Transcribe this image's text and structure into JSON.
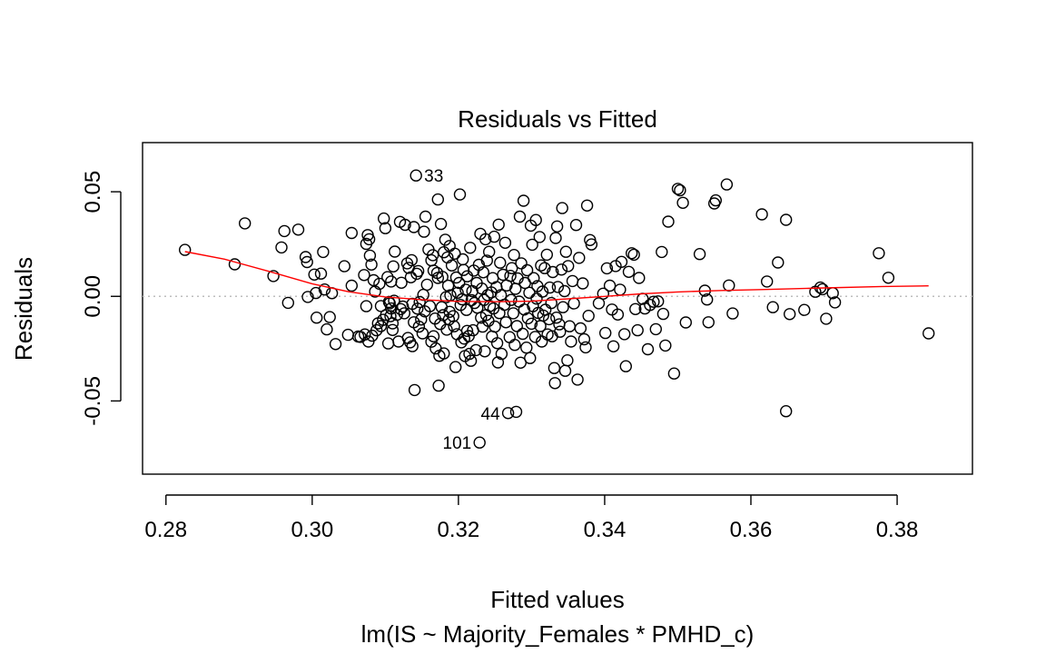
{
  "chart_data": {
    "type": "scatter",
    "title": "Residuals vs Fitted",
    "xlabel": "Fitted values",
    "subtitle": "lm(IS ~ Majority_Females * PMHD_c)",
    "ylabel": "Residuals",
    "xlim": [
      0.2768,
      0.3903
    ],
    "ylim": [
      -0.085,
      0.0735
    ],
    "x_ticks": [
      0.28,
      0.3,
      0.32,
      0.34,
      0.36,
      0.38
    ],
    "x_tick_labels": [
      "0.28",
      "0.30",
      "0.32",
      "0.34",
      "0.36",
      "0.38"
    ],
    "y_ticks": [
      -0.05,
      0.0,
      0.05
    ],
    "y_tick_labels": [
      "-0.05",
      "0.00",
      "0.05"
    ],
    "reference_line": 0,
    "colors": {
      "points": "#000000",
      "smoother": "#ff0000",
      "reference": "#bebebe"
    },
    "points": [
      [
        0.2826,
        0.0222
      ],
      [
        0.2894,
        0.0153
      ],
      [
        0.2908,
        0.0349
      ],
      [
        0.2947,
        0.0097
      ],
      [
        0.2958,
        0.0234
      ],
      [
        0.2962,
        0.0312
      ],
      [
        0.2967,
        -0.0031
      ],
      [
        0.2981,
        0.0319
      ],
      [
        0.2991,
        0.0188
      ],
      [
        0.2993,
        0.0164
      ],
      [
        0.2994,
        -0.0003
      ],
      [
        0.3003,
        0.0104
      ],
      [
        0.3005,
        0.0016
      ],
      [
        0.3006,
        -0.0102
      ],
      [
        0.3012,
        0.0109
      ],
      [
        0.3015,
        0.0212
      ],
      [
        0.3017,
        0.0033
      ],
      [
        0.302,
        -0.0158
      ],
      [
        0.3024,
        -0.0099
      ],
      [
        0.3027,
        0.0015
      ],
      [
        0.3032,
        -0.0228
      ],
      [
        0.3044,
        0.0144
      ],
      [
        0.3049,
        -0.0184
      ],
      [
        0.3054,
        0.0303
      ],
      [
        0.3054,
        0.0051
      ],
      [
        0.3063,
        -0.0192
      ],
      [
        0.3066,
        -0.0194
      ],
      [
        0.3071,
        0.0102
      ],
      [
        0.3072,
        -0.0182
      ],
      [
        0.3074,
        0.0251
      ],
      [
        0.3074,
        -0.0047
      ],
      [
        0.3076,
        0.0293
      ],
      [
        0.3077,
        -0.0216
      ],
      [
        0.3078,
        0.0273
      ],
      [
        0.3079,
        0.0195
      ],
      [
        0.3081,
        0.0152
      ],
      [
        0.3082,
        -0.0188
      ],
      [
        0.3084,
        0.0077
      ],
      [
        0.3086,
        0.0023
      ],
      [
        0.3088,
        -0.0162
      ],
      [
        0.309,
        -0.0129
      ],
      [
        0.3092,
        0.006
      ],
      [
        0.3094,
        -0.0046
      ],
      [
        0.3094,
        -0.0142
      ],
      [
        0.3097,
        -0.0112
      ],
      [
        0.3098,
        0.0372
      ],
      [
        0.31,
        0.0326
      ],
      [
        0.3101,
        -0.0089
      ],
      [
        0.3103,
        0.0092
      ],
      [
        0.3104,
        -0.0225
      ],
      [
        0.3105,
        -0.0027
      ],
      [
        0.3106,
        -0.0033
      ],
      [
        0.3107,
        -0.0095
      ],
      [
        0.3108,
        0.0071
      ],
      [
        0.3108,
        -0.0058
      ],
      [
        0.311,
        -0.0161
      ],
      [
        0.311,
        -0.0129
      ],
      [
        0.3111,
        0.0143
      ],
      [
        0.3112,
        -0.0021
      ],
      [
        0.3113,
        0.0214
      ],
      [
        0.3116,
        -0.0088
      ],
      [
        0.3118,
        -0.0216
      ],
      [
        0.312,
        0.0356
      ],
      [
        0.3121,
        -0.0061
      ],
      [
        0.3122,
        0.0065
      ],
      [
        0.3124,
        -0.0049
      ],
      [
        0.3126,
        -0.0081
      ],
      [
        0.3127,
        0.0342
      ],
      [
        0.313,
        0.0158
      ],
      [
        0.3131,
        -0.0199
      ],
      [
        0.3132,
        0.0136
      ],
      [
        0.3134,
        -0.022
      ],
      [
        0.3135,
        0.0091
      ],
      [
        0.3136,
        0.0173
      ],
      [
        0.3137,
        -0.0238
      ],
      [
        0.3137,
        -0.0036
      ],
      [
        0.3139,
        0.0331
      ],
      [
        0.3139,
        -0.0124
      ],
      [
        0.314,
        -0.0448
      ],
      [
        0.3142,
        0.0578
      ],
      [
        0.3143,
        0.0108
      ],
      [
        0.3144,
        -0.0059
      ],
      [
        0.3145,
        0.0121
      ],
      [
        0.3146,
        -0.0145
      ],
      [
        0.3147,
        -0.0027
      ],
      [
        0.3149,
        -0.0111
      ],
      [
        0.3151,
        -0.0177
      ],
      [
        0.3152,
        0.0007
      ],
      [
        0.3153,
        0.0309
      ],
      [
        0.3154,
        -0.0072
      ],
      [
        0.3155,
        0.0381
      ],
      [
        0.3157,
        0.0056
      ],
      [
        0.3159,
        0.0224
      ],
      [
        0.3161,
        -0.0047
      ],
      [
        0.3163,
        -0.0217
      ],
      [
        0.3163,
        0.0172
      ],
      [
        0.3165,
        0.0197
      ],
      [
        0.3166,
        -0.0191
      ],
      [
        0.3166,
        0.0123
      ],
      [
        0.3168,
        -0.0106
      ],
      [
        0.3169,
        -0.0249
      ],
      [
        0.3171,
        0.0112
      ],
      [
        0.3172,
        0.0463
      ],
      [
        0.3172,
        0.0088
      ],
      [
        0.3173,
        -0.0427
      ],
      [
        0.3174,
        -0.0284
      ],
      [
        0.3175,
        -0.0132
      ],
      [
        0.3176,
        0.0346
      ],
      [
        0.3177,
        -0.0052
      ],
      [
        0.3178,
        0.0093
      ],
      [
        0.3179,
        -0.009
      ],
      [
        0.318,
        0.0211
      ],
      [
        0.318,
        -0.0273
      ],
      [
        0.3182,
        0.0271
      ],
      [
        0.3183,
        -0.0004
      ],
      [
        0.3184,
        -0.0159
      ],
      [
        0.3185,
        0.0186
      ],
      [
        0.3186,
        0.0051
      ],
      [
        0.3187,
        -0.0111
      ],
      [
        0.3188,
        0.0241
      ],
      [
        0.3188,
        -0.0074
      ],
      [
        0.3189,
        0.0005
      ],
      [
        0.3191,
        0.0148
      ],
      [
        0.3193,
        -0.0095
      ],
      [
        0.3194,
        -0.0143
      ],
      [
        0.3195,
        0.0204
      ],
      [
        0.3196,
        -0.0338
      ],
      [
        0.3197,
        0.009
      ],
      [
        0.3198,
        -0.0181
      ],
      [
        0.3199,
        0.0017
      ],
      [
        0.3201,
        0.0064
      ],
      [
        0.3202,
        0.0487
      ],
      [
        0.3203,
        -0.0041
      ],
      [
        0.3204,
        -0.022
      ],
      [
        0.3205,
        -0.0014
      ],
      [
        0.3206,
        0.0177
      ],
      [
        0.3207,
        0.0126
      ],
      [
        0.3208,
        -0.0202
      ],
      [
        0.3209,
        -0.0285
      ],
      [
        0.321,
        0.0032
      ],
      [
        0.3211,
        -0.0065
      ],
      [
        0.3212,
        -0.0165
      ],
      [
        0.3212,
        0.0096
      ],
      [
        0.3214,
        -0.019
      ],
      [
        0.3215,
        -0.0275
      ],
      [
        0.3216,
        0.0232
      ],
      [
        0.3217,
        -0.0308
      ],
      [
        0.3218,
        -0.0018
      ],
      [
        0.3219,
        0.0025
      ],
      [
        0.322,
        -0.0162
      ],
      [
        0.3221,
        0.0123
      ],
      [
        0.3222,
        -0.0032
      ],
      [
        0.3224,
        -0.0257
      ],
      [
        0.3225,
        0.0064
      ],
      [
        0.3226,
        -0.0054
      ],
      [
        0.3228,
        0.0151
      ],
      [
        0.3229,
        -0.0699
      ],
      [
        0.323,
        0.0299
      ],
      [
        0.3231,
        -0.0102
      ],
      [
        0.3232,
        0.0037
      ],
      [
        0.3233,
        -0.0145
      ],
      [
        0.3234,
        0.0115
      ],
      [
        0.3235,
        -0.0017
      ],
      [
        0.3236,
        -0.0263
      ],
      [
        0.3237,
        0.0273
      ],
      [
        0.3238,
        -0.0089
      ],
      [
        0.3239,
        0.0171
      ],
      [
        0.324,
        0.0006
      ],
      [
        0.3241,
        -0.0117
      ],
      [
        0.3242,
        0.0213
      ],
      [
        0.3243,
        -0.0046
      ],
      [
        0.3245,
        0.0019
      ],
      [
        0.3246,
        -0.0192
      ],
      [
        0.3247,
        0.0087
      ],
      [
        0.3248,
        -0.0058
      ],
      [
        0.3249,
        0.0285
      ],
      [
        0.325,
        -0.0145
      ],
      [
        0.3252,
        0.0044
      ],
      [
        0.3253,
        -0.0224
      ],
      [
        0.3254,
        -0.0316
      ],
      [
        0.3255,
        0.0343
      ],
      [
        0.3256,
        -0.008
      ],
      [
        0.3257,
        0.0161
      ],
      [
        0.3258,
        0.0006
      ],
      [
        0.3259,
        -0.0275
      ],
      [
        0.3261,
        0.0103
      ],
      [
        0.3263,
        -0.004
      ],
      [
        0.3264,
        0.0256
      ],
      [
        0.3265,
        -0.0124
      ],
      [
        0.3266,
        0.0052
      ],
      [
        0.3268,
        -0.0558
      ],
      [
        0.327,
        -0.0195
      ],
      [
        0.3271,
        0.0098
      ],
      [
        0.3272,
        -0.0017
      ],
      [
        0.3273,
        0.0135
      ],
      [
        0.3275,
        -0.0081
      ],
      [
        0.3276,
        0.0198
      ],
      [
        0.3277,
        -0.0232
      ],
      [
        0.3278,
        0.0036
      ],
      [
        0.3279,
        -0.0552
      ],
      [
        0.328,
        -0.0142
      ],
      [
        0.3281,
        0.0086
      ],
      [
        0.3283,
        -0.0025
      ],
      [
        0.3284,
        0.0381
      ],
      [
        0.3285,
        -0.0317
      ],
      [
        0.3286,
        0.0158
      ],
      [
        0.3288,
        -0.0179
      ],
      [
        0.3289,
        0.0457
      ],
      [
        0.329,
        -0.0063
      ],
      [
        0.3291,
        0.0064
      ],
      [
        0.3293,
        -0.0245
      ],
      [
        0.3294,
        0.0125
      ],
      [
        0.3295,
        -0.0105
      ],
      [
        0.3297,
        0.0017
      ],
      [
        0.3298,
        -0.0295
      ],
      [
        0.3299,
        0.0338
      ],
      [
        0.33,
        -0.0131
      ],
      [
        0.3301,
        0.0247
      ],
      [
        0.3302,
        -0.0047
      ],
      [
        0.3303,
        0.0087
      ],
      [
        0.3305,
        -0.0194
      ],
      [
        0.3306,
        0.0365
      ],
      [
        0.3307,
        -0.0011
      ],
      [
        0.3308,
        0.0049
      ],
      [
        0.3309,
        -0.0079
      ],
      [
        0.3311,
        0.0284
      ],
      [
        0.3312,
        -0.0142
      ],
      [
        0.3313,
        0.0148
      ],
      [
        0.3314,
        -0.0216
      ],
      [
        0.3315,
        0.0023
      ],
      [
        0.3316,
        -0.0092
      ],
      [
        0.3318,
        0.0135
      ],
      [
        0.3319,
        -0.0064
      ],
      [
        0.3321,
        0.0199
      ],
      [
        0.3322,
        -0.0182
      ],
      [
        0.3324,
        -0.0109
      ],
      [
        0.3325,
        0.0042
      ],
      [
        0.3327,
        -0.0032
      ],
      [
        0.3328,
        -0.0191
      ],
      [
        0.3329,
        0.0116
      ],
      [
        0.3331,
        -0.0343
      ],
      [
        0.3332,
        -0.0415
      ],
      [
        0.3333,
        0.0279
      ],
      [
        0.3334,
        -0.0102
      ],
      [
        0.3335,
        0.0334
      ],
      [
        0.3336,
        0.0045
      ],
      [
        0.3338,
        -0.0134
      ],
      [
        0.3339,
        -0.0169
      ],
      [
        0.3341,
        0.0128
      ],
      [
        0.3342,
        0.0422
      ],
      [
        0.3343,
        -0.0052
      ],
      [
        0.3345,
        0.0025
      ],
      [
        0.3346,
        -0.0356
      ],
      [
        0.3347,
        0.0213
      ],
      [
        0.3349,
        -0.0306
      ],
      [
        0.335,
        0.0145
      ],
      [
        0.3352,
        -0.0143
      ],
      [
        0.3354,
        -0.0216
      ],
      [
        0.3356,
        0.0073
      ],
      [
        0.3358,
        -0.0034
      ],
      [
        0.3361,
        0.0341
      ],
      [
        0.3363,
        -0.0398
      ],
      [
        0.3365,
        0.0184
      ],
      [
        0.3367,
        -0.0153
      ],
      [
        0.337,
        0.0062
      ],
      [
        0.3372,
        -0.0205
      ],
      [
        0.3374,
        -0.0244
      ],
      [
        0.3376,
        0.0434
      ],
      [
        0.3378,
        -0.0093
      ],
      [
        0.338,
        0.0269
      ],
      [
        0.3382,
        0.0248
      ],
      [
        0.3392,
        -0.0033
      ],
      [
        0.3398,
        0.0013
      ],
      [
        0.3401,
        -0.0175
      ],
      [
        0.3403,
        0.0134
      ],
      [
        0.3407,
        0.0051
      ],
      [
        0.341,
        -0.0063
      ],
      [
        0.3412,
        -0.0239
      ],
      [
        0.3415,
        0.0145
      ],
      [
        0.3418,
        -0.0087
      ],
      [
        0.3421,
        0.0032
      ],
      [
        0.3423,
        0.0165
      ],
      [
        0.3427,
        -0.0181
      ],
      [
        0.3429,
        -0.0334
      ],
      [
        0.3433,
        0.0117
      ],
      [
        0.3437,
        0.0206
      ],
      [
        0.344,
        0.0199
      ],
      [
        0.3442,
        -0.0061
      ],
      [
        0.3445,
        -0.0162
      ],
      [
        0.3447,
        0.0088
      ],
      [
        0.3452,
        -0.0012
      ],
      [
        0.3455,
        -0.0058
      ],
      [
        0.3459,
        -0.0253
      ],
      [
        0.3462,
        -0.0041
      ],
      [
        0.3467,
        -0.0026
      ],
      [
        0.347,
        -0.0157
      ],
      [
        0.3473,
        -0.0024
      ],
      [
        0.3478,
        0.0212
      ],
      [
        0.348,
        -0.0084
      ],
      [
        0.3483,
        -0.0235
      ],
      [
        0.3487,
        0.0357
      ],
      [
        0.3495,
        -0.0369
      ],
      [
        0.35,
        0.0514
      ],
      [
        0.3503,
        0.0507
      ],
      [
        0.3507,
        0.0447
      ],
      [
        0.3511,
        -0.0125
      ],
      [
        0.353,
        0.0202
      ],
      [
        0.3537,
        0.0027
      ],
      [
        0.354,
        -0.0015
      ],
      [
        0.3542,
        -0.0124
      ],
      [
        0.355,
        0.0444
      ],
      [
        0.3552,
        0.0459
      ],
      [
        0.3567,
        0.0535
      ],
      [
        0.357,
        0.0052
      ],
      [
        0.3575,
        -0.0082
      ],
      [
        0.3615,
        0.0392
      ],
      [
        0.3622,
        0.0071
      ],
      [
        0.363,
        -0.0052
      ],
      [
        0.3637,
        0.0162
      ],
      [
        0.3648,
        0.0366
      ],
      [
        0.3648,
        -0.0549
      ],
      [
        0.3653,
        -0.0085
      ],
      [
        0.3673,
        -0.0065
      ],
      [
        0.3688,
        0.0022
      ],
      [
        0.3695,
        0.0042
      ],
      [
        0.3698,
        0.0034
      ],
      [
        0.3703,
        -0.0107
      ],
      [
        0.3712,
        0.0015
      ],
      [
        0.3715,
        -0.0029
      ],
      [
        0.3775,
        0.0206
      ],
      [
        0.3788,
        0.0089
      ],
      [
        0.3843,
        -0.0177
      ]
    ],
    "smoother": [
      [
        0.2826,
        0.0214
      ],
      [
        0.288,
        0.0178
      ],
      [
        0.294,
        0.012
      ],
      [
        0.3,
        0.006
      ],
      [
        0.305,
        0.0022
      ],
      [
        0.31,
        -0.0003
      ],
      [
        0.315,
        -0.0016
      ],
      [
        0.32,
        -0.0024
      ],
      [
        0.325,
        -0.0026
      ],
      [
        0.33,
        -0.0023
      ],
      [
        0.335,
        -0.0012
      ],
      [
        0.34,
        0.0
      ],
      [
        0.345,
        0.0012
      ],
      [
        0.35,
        0.0021
      ],
      [
        0.356,
        0.0028
      ],
      [
        0.362,
        0.0033
      ],
      [
        0.37,
        0.004
      ],
      [
        0.378,
        0.0047
      ],
      [
        0.3843,
        0.005
      ]
    ],
    "annotations": [
      {
        "label": "33",
        "x": 0.3142,
        "y": 0.0578,
        "side": "right"
      },
      {
        "label": "44",
        "x": 0.3268,
        "y": -0.0558,
        "side": "left"
      },
      {
        "label": "101",
        "x": 0.3229,
        "y": -0.0699,
        "side": "left"
      }
    ]
  }
}
